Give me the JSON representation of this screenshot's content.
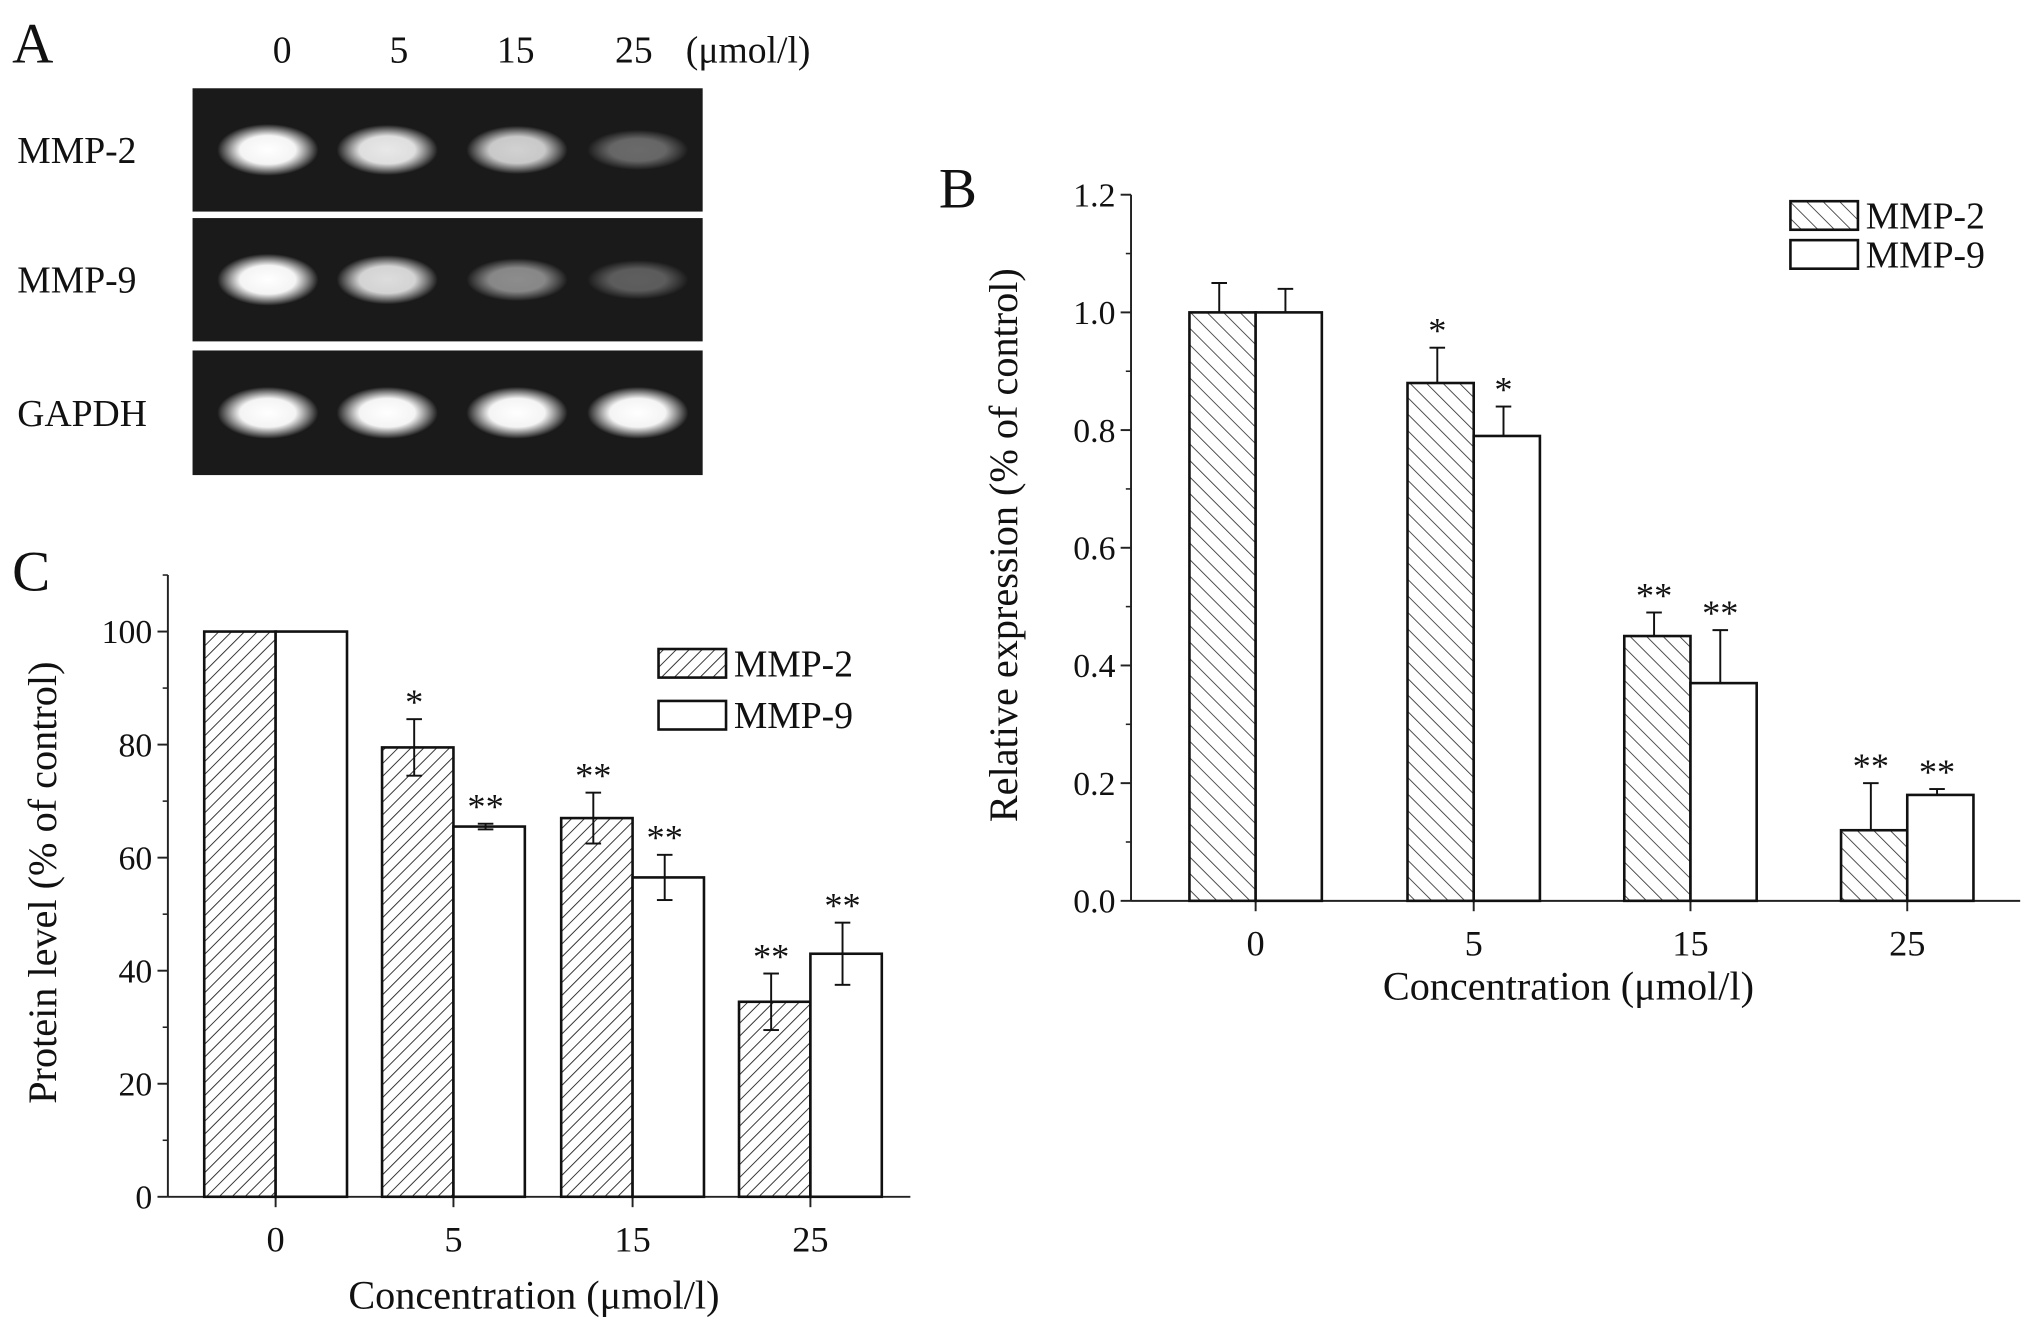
{
  "panel_a": {
    "label": "A",
    "lanes": [
      "0",
      "5",
      "15",
      "25"
    ],
    "unit": "(μmol/l)",
    "rows": [
      {
        "name": "MMP-2",
        "intensity": [
          1.0,
          0.9,
          0.8,
          0.35
        ]
      },
      {
        "name": "MMP-9",
        "intensity": [
          1.0,
          0.85,
          0.5,
          0.3
        ]
      },
      {
        "name": "GAPDH",
        "intensity": [
          1.0,
          1.0,
          1.0,
          1.0
        ]
      }
    ]
  },
  "chart_data": [
    {
      "panel": "B",
      "type": "bar",
      "categories": [
        "0",
        "5",
        "15",
        "25"
      ],
      "xlabel": "Concentration (μmol/l)",
      "ylabel": "Relative expression (% of control)",
      "ylim": [
        0,
        1.2
      ],
      "yticks": [
        "0.0",
        "0.2",
        "0.4",
        "0.6",
        "0.8",
        "1.0",
        "1.2"
      ],
      "legend": "top-right",
      "series": [
        {
          "name": "MMP-2",
          "pattern": "hatch-back",
          "values": [
            1.0,
            0.88,
            0.45,
            0.12
          ],
          "errors": [
            0.05,
            0.06,
            0.04,
            0.08
          ],
          "marks": [
            "",
            "*",
            "**",
            "**"
          ]
        },
        {
          "name": "MMP-9",
          "pattern": "open",
          "values": [
            1.0,
            0.79,
            0.37,
            0.18
          ],
          "errors": [
            0.04,
            0.05,
            0.09,
            0.01
          ],
          "marks": [
            "",
            "*",
            "**",
            "**"
          ]
        }
      ]
    },
    {
      "panel": "C",
      "type": "bar",
      "categories": [
        "0",
        "5",
        "15",
        "25"
      ],
      "xlabel": "Concentration (μmol/l)",
      "ylabel": "Protein level (% of control)",
      "ylim": [
        0,
        110
      ],
      "yticks": [
        "0",
        "20",
        "40",
        "60",
        "80",
        "100"
      ],
      "legend": "top-right",
      "series": [
        {
          "name": "MMP-2",
          "pattern": "hatch-forward",
          "values": [
            100,
            79.5,
            67,
            34.5
          ],
          "errors": [
            0,
            5,
            4.5,
            5
          ],
          "marks": [
            "",
            "*",
            "**",
            "**"
          ]
        },
        {
          "name": "MMP-9",
          "pattern": "open",
          "values": [
            100,
            65.5,
            56.5,
            43
          ],
          "errors": [
            0,
            0.5,
            4,
            5.5
          ],
          "marks": [
            "",
            "**",
            "**",
            "**"
          ]
        }
      ]
    }
  ]
}
